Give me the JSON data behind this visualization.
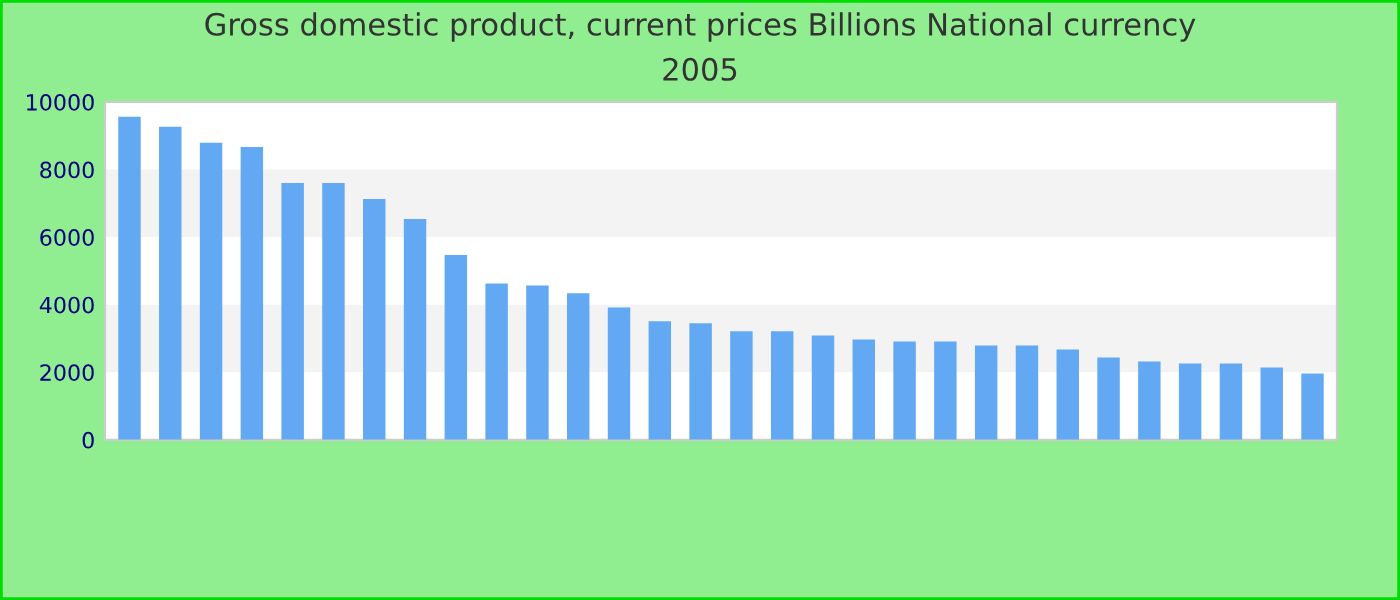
{
  "chart_data": {
    "type": "bar",
    "title": "Gross domestic product, current prices Billions National currency",
    "subtitle": "2005",
    "categories": [
      null,
      null,
      null,
      null,
      null,
      null,
      null,
      null,
      null,
      null,
      null,
      null,
      null,
      null,
      null,
      null,
      null,
      null,
      null,
      null,
      null,
      null,
      null,
      null,
      null,
      null,
      null,
      null,
      null,
      null
    ],
    "values": [
      9560,
      9270,
      8790,
      8670,
      7600,
      7600,
      7130,
      6540,
      5470,
      4630,
      4570,
      4340,
      3920,
      3510,
      3450,
      3210,
      3210,
      3090,
      2970,
      2910,
      2910,
      2790,
      2790,
      2670,
      2440,
      2320,
      2260,
      2260,
      2140,
      1960
    ],
    "color": "#62a8f3",
    "ylim": [
      0,
      10000
    ],
    "yticks": [
      0,
      2000,
      4000,
      6000,
      8000,
      10000
    ],
    "bands": [
      {
        "axis": "y",
        "from": 2000,
        "to": 4000,
        "color": "#f3f3f3"
      },
      {
        "axis": "y",
        "from": 6000,
        "to": 8000,
        "color": "#f3f3f3"
      }
    ]
  }
}
